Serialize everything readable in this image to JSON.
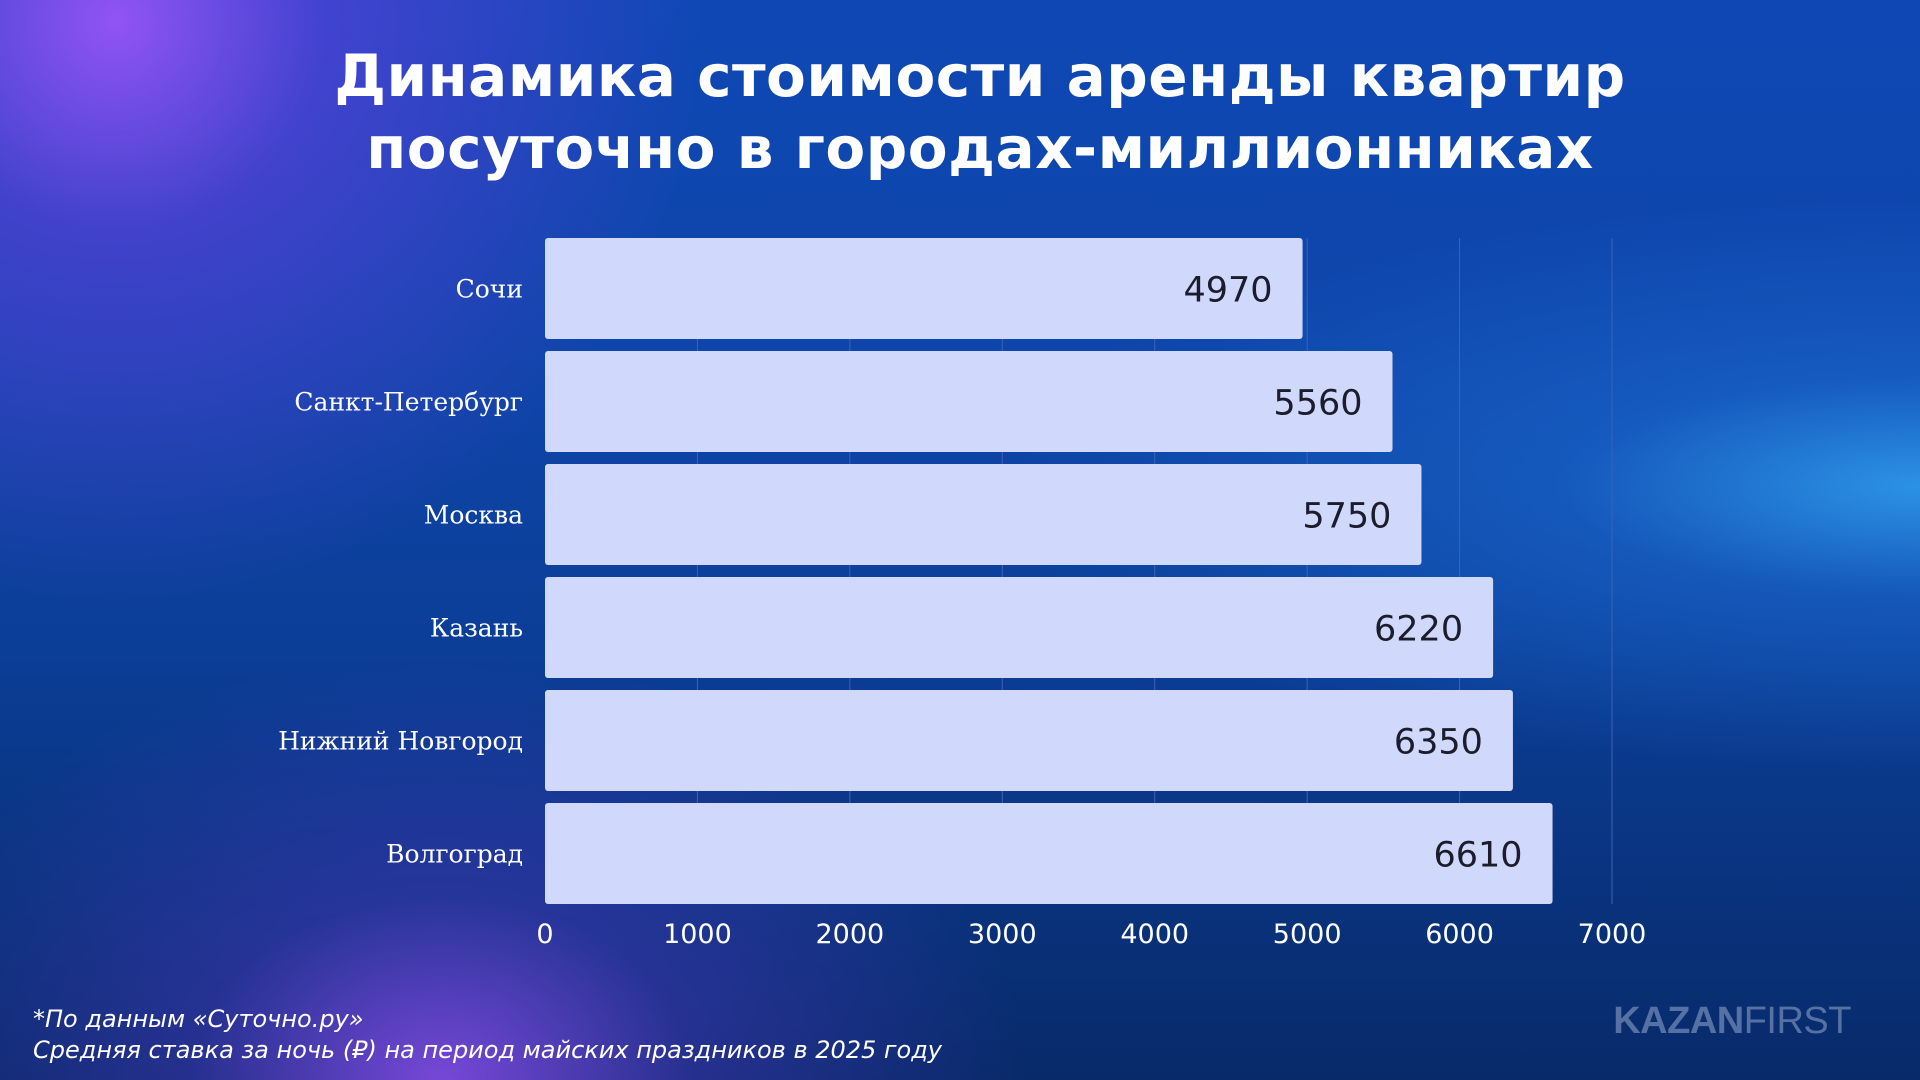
{
  "title": {
    "line1": "Динамика стоимости аренды квартир",
    "line2": "посуточно в городах-миллионниках"
  },
  "chart_data": {
    "type": "bar",
    "orientation": "horizontal",
    "categories": [
      "Сочи",
      "Санкт-Петербург",
      "Москва",
      "Казань",
      "Нижний Новгород",
      "Волгоград"
    ],
    "values": [
      4970,
      5560,
      5750,
      6220,
      6350,
      6610
    ],
    "xlim": [
      0,
      7000
    ],
    "xticks": [
      0,
      1000,
      2000,
      3000,
      4000,
      5000,
      6000,
      7000
    ],
    "grid": true,
    "legend": "none",
    "data_labels": true
  },
  "footnote": {
    "source": "*По данным «Суточно.ру»",
    "description": "Средняя ставка за ночь (₽) на период майских праздников в 2025 году"
  },
  "brand": {
    "part1": "KAZAN",
    "part2": "FIRST"
  },
  "colors": {
    "bar": "#d0d8fb",
    "data_label": "#1b1d2d",
    "gridline": "#3c61b6",
    "axis_text": "#ffffff"
  }
}
